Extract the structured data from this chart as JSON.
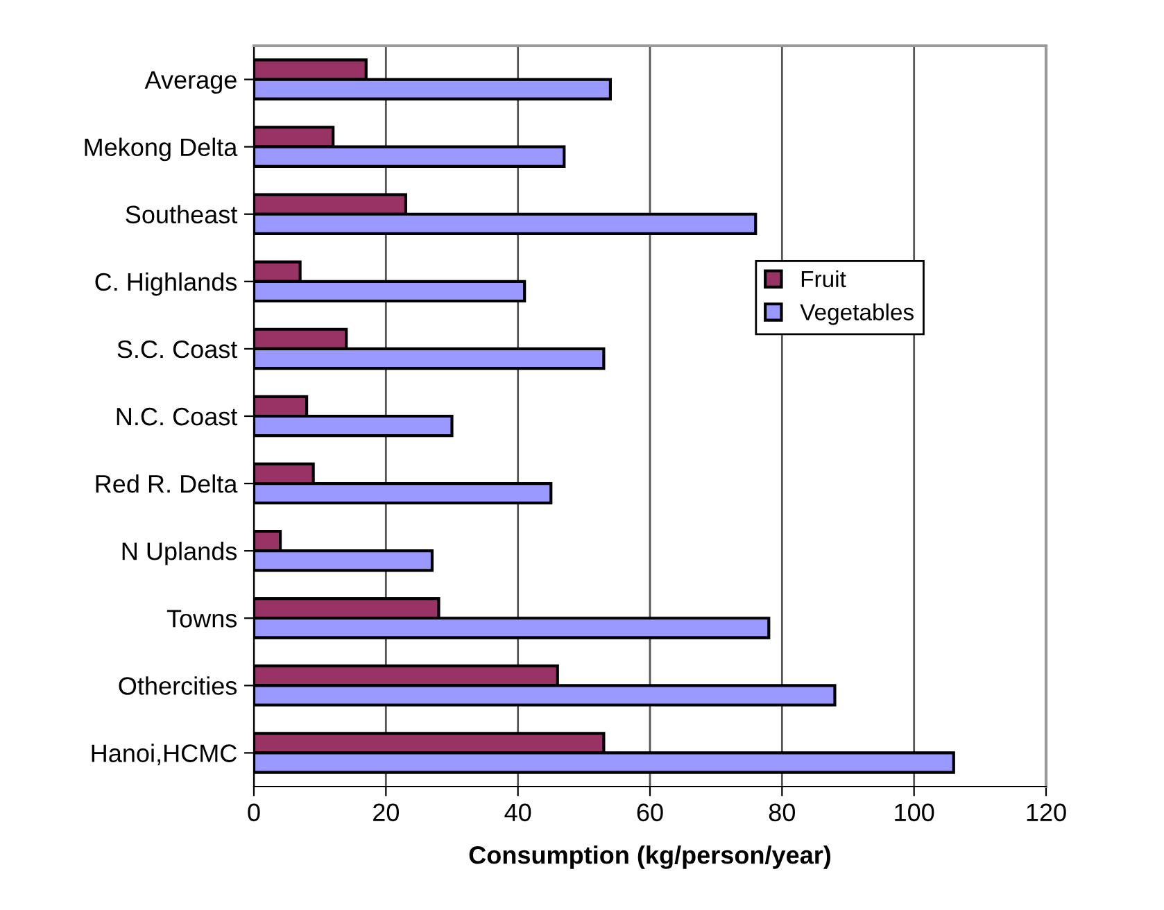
{
  "chart_data": {
    "type": "bar",
    "orientation": "horizontal",
    "xlabel": "Consumption (kg/person/year)",
    "categories": [
      "Average",
      "Mekong Delta",
      "Southeast",
      "C. Highlands",
      "S.C. Coast",
      "N.C. Coast",
      "Red R. Delta",
      "N Uplands",
      "Towns",
      "Othercities",
      "Hanoi,HCMC"
    ],
    "series": [
      {
        "name": "Fruit",
        "color": "#993366",
        "values": [
          17,
          12,
          23,
          7,
          14,
          8,
          9,
          4,
          28,
          46,
          53
        ]
      },
      {
        "name": "Vegetables",
        "color": "#9999ff",
        "values": [
          54,
          47,
          76,
          41,
          53,
          30,
          45,
          27,
          78,
          88,
          106
        ]
      }
    ],
    "xlim": [
      0,
      120
    ],
    "xticks": [
      0,
      20,
      40,
      60,
      80,
      100,
      120
    ],
    "grid": "x",
    "legend": "right"
  }
}
